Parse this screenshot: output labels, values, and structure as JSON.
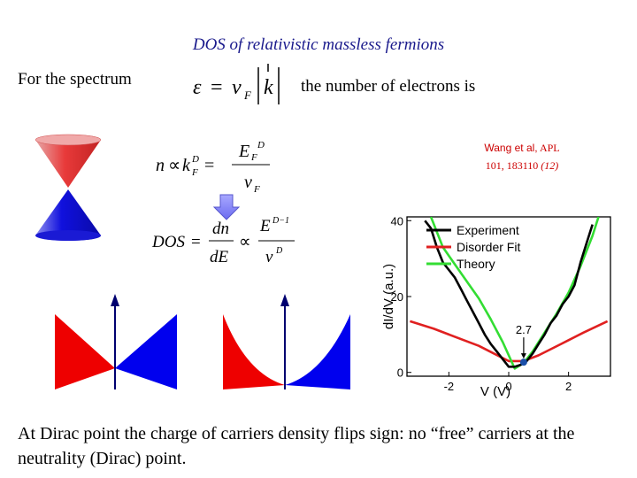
{
  "slide": {
    "title": "DOS of relativistic massless fermions",
    "intro_text": "For the spectrum",
    "after_text": "the number of electrons is",
    "conclusion": "At Dirac point the charge of carriers density flips sign: no “free” carriers at the neutrality (Dirac) point."
  },
  "equations": {
    "spectrum": {
      "lhs": "ε",
      "eq": "=",
      "v": "v",
      "v_sub": "F",
      "k": "k"
    },
    "n_eq": {
      "n": "n",
      "prop": "∝",
      "k": "k",
      "sub": "F",
      "sup": "D",
      "eq": "=",
      "E": "E",
      "Esub": "F",
      "Esup": "D",
      "v": "v",
      "vsub": "F"
    },
    "dos_eq": {
      "lhs": "DOS",
      "eq": "=",
      "dn": "dn",
      "dE": "dE",
      "prop": "∝",
      "E": "E",
      "Esup": "D−1",
      "v": "v",
      "vsup": "D"
    }
  },
  "reference": {
    "authors": "Wang et al,",
    "journal": "APL",
    "citation": "101, 183110",
    "issue": "(12)"
  },
  "colors": {
    "title": "#1a1a8c",
    "upper_cone": "#e83a3a",
    "lower_cone": "#1010dd",
    "arrow": "#7a7aff",
    "reference": "#cc0000"
  },
  "chart_data": {
    "type": "line",
    "xlabel": "V (V)",
    "ylabel": "dI/dV (a.u.)",
    "xlim": [
      -3.4,
      3.4
    ],
    "ylim": [
      -1,
      41
    ],
    "xticks": [
      "-2",
      "0",
      "2"
    ],
    "yticks": [
      "0",
      "20",
      "40"
    ],
    "legend": "top-right",
    "annotation": {
      "text": "2.7",
      "x": 0.5,
      "y": 2.7
    },
    "series": [
      {
        "name": "Experiment",
        "color": "#000000",
        "x": [
          -2.8,
          -2.6,
          -2.4,
          -2.2,
          -2.0,
          -1.8,
          -1.6,
          -1.4,
          -1.2,
          -1.0,
          -0.8,
          -0.6,
          -0.4,
          -0.2,
          0.0,
          0.2,
          0.4,
          0.6,
          0.8,
          1.0,
          1.2,
          1.4,
          1.6,
          1.8,
          2.0,
          2.2,
          2.4,
          2.6,
          2.8
        ],
        "y": [
          40,
          38,
          33,
          29,
          27,
          25,
          22,
          19,
          16,
          13,
          10,
          7.5,
          5.5,
          3.5,
          1.5,
          1.5,
          2.0,
          3.0,
          5.0,
          7.5,
          10,
          13,
          15,
          18,
          20,
          23,
          29,
          34,
          39
        ]
      },
      {
        "name": "Disorder Fit",
        "color": "#e02020",
        "x": [
          -3.3,
          -2.5,
          -2.0,
          -1.5,
          -1.0,
          -0.5,
          0.0,
          0.5,
          1.0,
          1.5,
          2.0,
          2.5,
          3.3
        ],
        "y": [
          13.5,
          11.5,
          10.0,
          8.5,
          7.0,
          5.0,
          3.0,
          3.0,
          4.5,
          6.5,
          8.5,
          10.5,
          13.5
        ]
      },
      {
        "name": "Theory",
        "color": "#33dd33",
        "x": [
          -2.6,
          -2.2,
          -1.8,
          -1.4,
          -1.0,
          -0.6,
          -0.2,
          0.2,
          0.5,
          0.8,
          1.2,
          1.6,
          2.0,
          2.4,
          2.8,
          3.0
        ],
        "y": [
          41,
          33,
          28.5,
          24,
          19.5,
          14,
          8,
          1.0,
          2.5,
          5.5,
          10.5,
          15.5,
          21,
          28,
          36,
          41
        ]
      }
    ],
    "point": {
      "x": 0.5,
      "y": 2.7,
      "color": "#1a4fa8"
    }
  }
}
